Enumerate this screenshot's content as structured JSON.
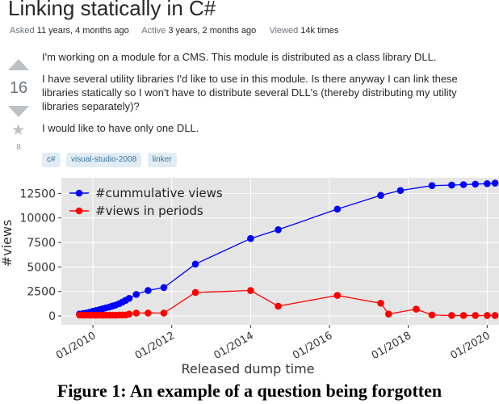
{
  "question": {
    "title": "Linking statically in C#",
    "meta": {
      "asked_label": "Asked",
      "asked_value": "11 years, 4 months ago",
      "active_label": "Active",
      "active_value": "3 years, 2 months ago",
      "viewed_label": "Viewed",
      "viewed_value": "14k times"
    },
    "votes": "16",
    "favorites": "8",
    "body": [
      "I'm working on a module for a CMS. This module is distributed as a class library DLL.",
      "I have several utility libraries I'd like to use in this module. Is there anyway I can link these libraries statically so I won't have to distribute several DLL's (thereby distributing my utility libraries separately)?",
      "I would like to have only one DLL."
    ],
    "tags": [
      "c#",
      "visual-studio-2008",
      "linker"
    ]
  },
  "chart_data": {
    "type": "line",
    "xlabel": "Released dump time",
    "ylabel": "#views",
    "x_range": [
      2009.2,
      2020.3
    ],
    "ylim": [
      -900,
      14100
    ],
    "x_ticks": [
      {
        "value": 2010,
        "label": "01/2010"
      },
      {
        "value": 2012,
        "label": "01/2012"
      },
      {
        "value": 2014,
        "label": "01/2014"
      },
      {
        "value": 2016,
        "label": "01/2016"
      },
      {
        "value": 2018,
        "label": "01/2018"
      },
      {
        "value": 2020,
        "label": "01/2020"
      }
    ],
    "y_ticks": [
      0,
      2500,
      5000,
      7500,
      10000,
      12500
    ],
    "y_tick_labels": [
      "0",
      "2500",
      "5000",
      "7500",
      "10000",
      "12500"
    ],
    "grid": true,
    "background": "#e5e5e5",
    "legend": "top-left",
    "series": [
      {
        "name": "#cummulative views",
        "color": "#0000ff",
        "points": [
          [
            2009.66,
            200
          ],
          [
            2009.75,
            250
          ],
          [
            2009.83,
            300
          ],
          [
            2009.92,
            380
          ],
          [
            2010.0,
            480
          ],
          [
            2010.08,
            560
          ],
          [
            2010.17,
            650
          ],
          [
            2010.25,
            740
          ],
          [
            2010.33,
            830
          ],
          [
            2010.42,
            920
          ],
          [
            2010.5,
            1020
          ],
          [
            2010.58,
            1120
          ],
          [
            2010.67,
            1260
          ],
          [
            2010.75,
            1420
          ],
          [
            2010.83,
            1600
          ],
          [
            2010.92,
            1800
          ],
          [
            2011.1,
            2200
          ],
          [
            2011.4,
            2600
          ],
          [
            2011.8,
            2900
          ],
          [
            2012.6,
            5300
          ],
          [
            2014.0,
            7900
          ],
          [
            2014.7,
            8800
          ],
          [
            2016.2,
            10900
          ],
          [
            2017.3,
            12300
          ],
          [
            2017.8,
            12800
          ],
          [
            2018.6,
            13300
          ],
          [
            2019.1,
            13350
          ],
          [
            2019.4,
            13400
          ],
          [
            2019.7,
            13450
          ],
          [
            2020.0,
            13500
          ],
          [
            2020.2,
            13550
          ]
        ]
      },
      {
        "name": "#views in periods",
        "color": "#ff0000",
        "points": [
          [
            2009.66,
            100
          ],
          [
            2009.75,
            80
          ],
          [
            2009.83,
            90
          ],
          [
            2009.92,
            80
          ],
          [
            2010.0,
            90
          ],
          [
            2010.08,
            80
          ],
          [
            2010.17,
            90
          ],
          [
            2010.25,
            80
          ],
          [
            2010.33,
            90
          ],
          [
            2010.42,
            80
          ],
          [
            2010.5,
            90
          ],
          [
            2010.58,
            80
          ],
          [
            2010.67,
            100
          ],
          [
            2010.75,
            100
          ],
          [
            2010.83,
            100
          ],
          [
            2010.92,
            200
          ],
          [
            2011.1,
            300
          ],
          [
            2011.4,
            300
          ],
          [
            2011.8,
            300
          ],
          [
            2012.6,
            2400
          ],
          [
            2014.0,
            2600
          ],
          [
            2014.7,
            1000
          ],
          [
            2016.2,
            2100
          ],
          [
            2017.3,
            1300
          ],
          [
            2017.5,
            200
          ],
          [
            2018.2,
            700
          ],
          [
            2018.6,
            100
          ],
          [
            2019.1,
            50
          ],
          [
            2019.4,
            50
          ],
          [
            2019.7,
            50
          ],
          [
            2020.0,
            50
          ],
          [
            2020.2,
            50
          ]
        ]
      }
    ]
  },
  "caption": "Figure 1: An example of a question being forgotten"
}
